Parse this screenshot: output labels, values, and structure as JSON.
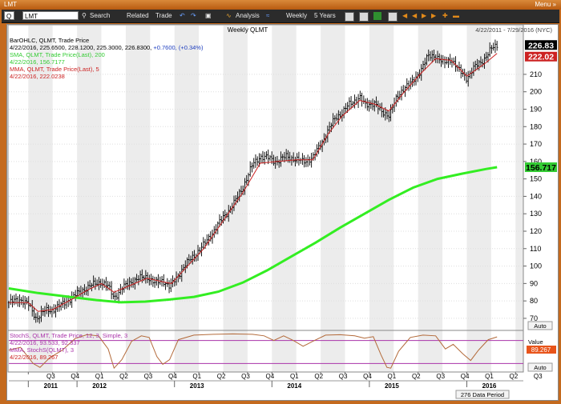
{
  "window": {
    "title": "LMT",
    "menu_label": "Menu »"
  },
  "toolbar": {
    "symbol_dropdown": "Q",
    "symbol_value": "LMT",
    "search_label": "Search",
    "related_label": "Related",
    "trade_label": "Trade",
    "analysis_label": "Analysis",
    "period_label": "Weekly",
    "range_label": "5 Years"
  },
  "chart_data": [
    {
      "type": "ohlc",
      "title": "Weekly QLMT",
      "date_range": "4/22/2011 - 7/29/2016 (NYC)",
      "legend": [
        {
          "text": "BarOHLC, QLMT, Trade Price",
          "color": "#000000"
        },
        {
          "text": "4/22/2016, 225.6500, 228.1200, 225.3000, 226.8300, ",
          "color": "#000000",
          "change": "+0.7600, (+0.34%)",
          "change_color": "#1f3fbf"
        },
        {
          "text": "SMA, QLMT, Trade Price(Last), 200",
          "color": "#33cc33"
        },
        {
          "text": "4/22/2016, 156.7177",
          "color": "#33cc33"
        },
        {
          "text": "MMA, QLMT, Trade Price(Last), 5",
          "color": "#cc2222"
        },
        {
          "text": "4/22/2016, 222.0238",
          "color": "#cc2222"
        }
      ],
      "ylim": [
        64,
        232
      ],
      "yticks": [
        70,
        80,
        90,
        100,
        110,
        120,
        130,
        140,
        150,
        160,
        170,
        180,
        190,
        200,
        210
      ],
      "price_labels": [
        {
          "text": "226.83",
          "value": 226.83,
          "bg": "#000000",
          "fg": "#ffffff"
        },
        {
          "text": "222.02",
          "value": 222.02,
          "bg": "#cc2222",
          "fg": "#ffffff"
        },
        {
          "text": "156.717",
          "value": 156.717,
          "bg": "#33cc33",
          "fg": "#000000"
        }
      ],
      "auto_label": "Auto",
      "price_anchors": [
        [
          2011.3,
          79
        ],
        [
          2011.42,
          81
        ],
        [
          2011.5,
          78
        ],
        [
          2011.58,
          70
        ],
        [
          2011.66,
          74
        ],
        [
          2011.75,
          75
        ],
        [
          2011.85,
          78
        ],
        [
          2011.95,
          82
        ],
        [
          2012.05,
          86
        ],
        [
          2012.15,
          89
        ],
        [
          2012.25,
          91
        ],
        [
          2012.32,
          88
        ],
        [
          2012.38,
          82
        ],
        [
          2012.46,
          87
        ],
        [
          2012.55,
          91
        ],
        [
          2012.65,
          93
        ],
        [
          2012.72,
          94
        ],
        [
          2012.8,
          90
        ],
        [
          2012.88,
          92
        ],
        [
          2012.95,
          88
        ],
        [
          2013.02,
          93
        ],
        [
          2013.1,
          100
        ],
        [
          2013.2,
          106
        ],
        [
          2013.3,
          112
        ],
        [
          2013.4,
          120
        ],
        [
          2013.5,
          128
        ],
        [
          2013.6,
          135
        ],
        [
          2013.7,
          145
        ],
        [
          2013.8,
          158
        ],
        [
          2013.88,
          163
        ],
        [
          2013.96,
          162
        ],
        [
          2014.05,
          160
        ],
        [
          2014.15,
          163
        ],
        [
          2014.25,
          161
        ],
        [
          2014.32,
          160
        ],
        [
          2014.42,
          162
        ],
        [
          2014.5,
          170
        ],
        [
          2014.58,
          178
        ],
        [
          2014.65,
          185
        ],
        [
          2014.72,
          188
        ],
        [
          2014.8,
          193
        ],
        [
          2014.9,
          197
        ],
        [
          2014.96,
          192
        ],
        [
          2015.05,
          194
        ],
        [
          2015.12,
          188
        ],
        [
          2015.2,
          187
        ],
        [
          2015.28,
          196
        ],
        [
          2015.36,
          203
        ],
        [
          2015.44,
          205
        ],
        [
          2015.52,
          212
        ],
        [
          2015.6,
          220
        ],
        [
          2015.68,
          221
        ],
        [
          2015.76,
          216
        ],
        [
          2015.84,
          219
        ],
        [
          2015.92,
          212
        ],
        [
          2016.0,
          208
        ],
        [
          2016.08,
          214
        ],
        [
          2016.18,
          219
        ],
        [
          2016.26,
          225
        ],
        [
          2016.31,
          226.8
        ]
      ],
      "mma_anchors": [
        [
          2011.3,
          79
        ],
        [
          2011.5,
          79
        ],
        [
          2011.6,
          74
        ],
        [
          2011.75,
          75
        ],
        [
          2011.95,
          81
        ],
        [
          2012.1,
          86
        ],
        [
          2012.25,
          90
        ],
        [
          2012.38,
          85
        ],
        [
          2012.55,
          89
        ],
        [
          2012.72,
          93
        ],
        [
          2012.88,
          91
        ],
        [
          2012.97,
          90
        ],
        [
          2013.1,
          98
        ],
        [
          2013.3,
          110
        ],
        [
          2013.5,
          126
        ],
        [
          2013.7,
          142
        ],
        [
          2013.88,
          159
        ],
        [
          2014.05,
          160
        ],
        [
          2014.25,
          161
        ],
        [
          2014.42,
          161
        ],
        [
          2014.58,
          176
        ],
        [
          2014.72,
          186
        ],
        [
          2014.9,
          195
        ],
        [
          2015.05,
          193
        ],
        [
          2015.2,
          189
        ],
        [
          2015.36,
          200
        ],
        [
          2015.52,
          210
        ],
        [
          2015.68,
          219
        ],
        [
          2015.84,
          218
        ],
        [
          2016.0,
          209
        ],
        [
          2016.18,
          216
        ],
        [
          2016.31,
          222.02
        ]
      ],
      "sma_anchors": [
        [
          2011.3,
          87.2
        ],
        [
          2011.6,
          84.5
        ],
        [
          2011.9,
          82.5
        ],
        [
          2012.2,
          80.5
        ],
        [
          2012.45,
          79.2
        ],
        [
          2012.7,
          79.6
        ],
        [
          2012.95,
          80.8
        ],
        [
          2013.2,
          82.3
        ],
        [
          2013.45,
          85.3
        ],
        [
          2013.7,
          90.5
        ],
        [
          2013.95,
          97.5
        ],
        [
          2014.2,
          105.5
        ],
        [
          2014.45,
          113.5
        ],
        [
          2014.7,
          122
        ],
        [
          2014.95,
          130
        ],
        [
          2015.2,
          138
        ],
        [
          2015.45,
          145
        ],
        [
          2015.7,
          150
        ],
        [
          2015.95,
          153
        ],
        [
          2016.2,
          155.7
        ],
        [
          2016.31,
          156.72
        ]
      ]
    },
    {
      "type": "line",
      "title": "StochS, QLMT, Trade Price, 12, 3, Simple, 3",
      "legend": [
        {
          "text": "StochS, QLMT, Trade Price, 12, 3, Simple, 3",
          "color": "#aa33aa"
        },
        {
          "text": "4/22/2016, 93.533, 92.337",
          "color": "#aa33aa"
        },
        {
          "text": "MMA, StochS(QLMT), 3",
          "color": "#aa33aa"
        },
        {
          "text": "4/22/2016, 89.267",
          "color": "#cc2222"
        }
      ],
      "ylim": [
        0,
        100
      ],
      "levels": [
        80,
        20
      ],
      "value_header": "Value",
      "value_label": "89.267",
      "value": 89.267,
      "auto_label": "Auto",
      "stoch_anchors": [
        [
          2011.3,
          55
        ],
        [
          2011.42,
          62
        ],
        [
          2011.55,
          20
        ],
        [
          2011.62,
          10
        ],
        [
          2011.72,
          35
        ],
        [
          2011.85,
          55
        ],
        [
          2011.98,
          85
        ],
        [
          2012.1,
          95
        ],
        [
          2012.22,
          92
        ],
        [
          2012.32,
          58
        ],
        [
          2012.38,
          8
        ],
        [
          2012.46,
          30
        ],
        [
          2012.56,
          78
        ],
        [
          2012.66,
          92
        ],
        [
          2012.74,
          88
        ],
        [
          2012.82,
          38
        ],
        [
          2012.88,
          18
        ],
        [
          2012.95,
          30
        ],
        [
          2013.04,
          82
        ],
        [
          2013.2,
          94
        ],
        [
          2013.4,
          96
        ],
        [
          2013.6,
          97
        ],
        [
          2013.8,
          96
        ],
        [
          2013.92,
          92
        ],
        [
          2014.02,
          80
        ],
        [
          2014.12,
          92
        ],
        [
          2014.22,
          80
        ],
        [
          2014.32,
          65
        ],
        [
          2014.42,
          78
        ],
        [
          2014.55,
          94
        ],
        [
          2014.7,
          95
        ],
        [
          2014.85,
          92
        ],
        [
          2014.95,
          86
        ],
        [
          2015.04,
          90
        ],
        [
          2015.12,
          42
        ],
        [
          2015.18,
          10
        ],
        [
          2015.22,
          8
        ],
        [
          2015.3,
          52
        ],
        [
          2015.42,
          88
        ],
        [
          2015.55,
          94
        ],
        [
          2015.68,
          92
        ],
        [
          2015.78,
          58
        ],
        [
          2015.86,
          70
        ],
        [
          2015.96,
          45
        ],
        [
          2016.04,
          28
        ],
        [
          2016.12,
          55
        ],
        [
          2016.22,
          82
        ],
        [
          2016.31,
          89.3
        ]
      ]
    }
  ],
  "x_axis": {
    "quarters": [
      {
        "label": "Q3",
        "t": 2011.5
      },
      {
        "label": "Q4",
        "t": 2011.75
      },
      {
        "label": "Q1",
        "t": 2012.0
      },
      {
        "label": "Q2",
        "t": 2012.25
      },
      {
        "label": "Q3",
        "t": 2012.5
      },
      {
        "label": "Q4",
        "t": 2012.75
      },
      {
        "label": "Q1",
        "t": 2013.0
      },
      {
        "label": "Q2",
        "t": 2013.25
      },
      {
        "label": "Q3",
        "t": 2013.5
      },
      {
        "label": "Q4",
        "t": 2013.75
      },
      {
        "label": "Q1",
        "t": 2014.0
      },
      {
        "label": "Q2",
        "t": 2014.25
      },
      {
        "label": "Q3",
        "t": 2014.5
      },
      {
        "label": "Q4",
        "t": 2014.75
      },
      {
        "label": "Q1",
        "t": 2015.0
      },
      {
        "label": "Q2",
        "t": 2015.25
      },
      {
        "label": "Q3",
        "t": 2015.5
      },
      {
        "label": "Q4",
        "t": 2015.75
      },
      {
        "label": "Q1",
        "t": 2016.0
      },
      {
        "label": "Q2",
        "t": 2016.25
      },
      {
        "label": "Q3",
        "t": 2016.5
      }
    ],
    "years": [
      {
        "label": "2011",
        "t": 2011.5
      },
      {
        "label": "2012",
        "t": 2012.0
      },
      {
        "label": "2013",
        "t": 2013.0
      },
      {
        "label": "2014",
        "t": 2014.0
      },
      {
        "label": "2015",
        "t": 2015.0
      },
      {
        "label": "2016",
        "t": 2016.0
      }
    ],
    "range": [
      2011.3,
      2016.58
    ],
    "data_period": "276 Data Period"
  },
  "colors": {
    "bars": "#000000",
    "sma": "#33ee22",
    "mma": "#cc2222",
    "stoch": "#b36a3a",
    "stoch_level": "#aa33aa",
    "stripe": "#ececec"
  }
}
